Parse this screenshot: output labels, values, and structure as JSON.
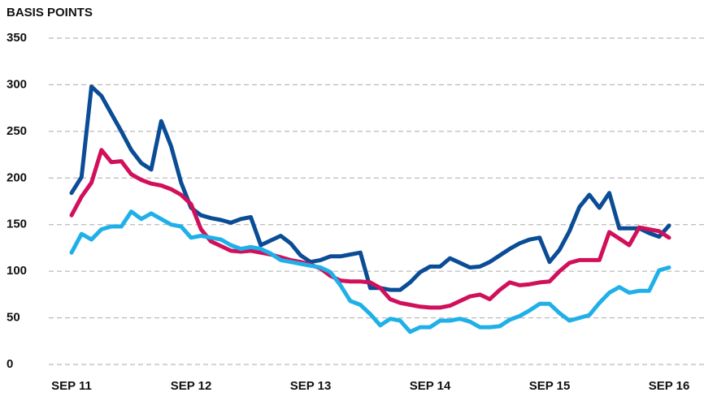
{
  "chart_data": {
    "type": "line",
    "y_label": "BASIS POINTS",
    "categories": [
      "SEP 11",
      null,
      null,
      null,
      null,
      null,
      null,
      null,
      null,
      null,
      null,
      null,
      "SEP 12",
      null,
      null,
      null,
      null,
      null,
      null,
      null,
      null,
      null,
      null,
      null,
      "SEP 13",
      null,
      null,
      null,
      null,
      null,
      null,
      null,
      null,
      null,
      null,
      null,
      "SEP 14",
      null,
      null,
      null,
      null,
      null,
      null,
      null,
      null,
      null,
      null,
      null,
      "SEP 15",
      null,
      null,
      null,
      null,
      null,
      null,
      null,
      null,
      null,
      null,
      null,
      "SEP 16"
    ],
    "series": [
      {
        "color": "#0a4c95",
        "values": [
          184,
          201,
          298,
          288,
          269,
          250,
          230,
          216,
          209,
          261,
          234,
          195,
          168,
          160,
          157,
          155,
          152,
          156,
          158,
          128,
          133,
          138,
          130,
          117,
          110,
          112,
          116,
          116,
          118,
          120,
          82,
          82,
          80,
          80,
          88,
          99,
          105,
          105,
          114,
          109,
          104,
          105,
          110,
          117,
          124,
          130,
          134,
          136,
          110,
          123,
          143,
          169,
          182,
          168,
          184,
          146,
          146,
          146,
          141,
          137,
          149
        ]
      },
      {
        "color": "#d0105a",
        "values": [
          160,
          180,
          195,
          230,
          217,
          218,
          204,
          198,
          194,
          192,
          188,
          182,
          172,
          145,
          132,
          127,
          122,
          121,
          122,
          120,
          118,
          115,
          112,
          110,
          107,
          103,
          95,
          90,
          89,
          89,
          88,
          82,
          70,
          66,
          64,
          62,
          61,
          61,
          63,
          68,
          73,
          75,
          70,
          80,
          88,
          85,
          86,
          88,
          89,
          100,
          109,
          112,
          112,
          112,
          142,
          135,
          128,
          147,
          145,
          143,
          136
        ]
      },
      {
        "color": "#1fb0e8",
        "values": [
          120,
          140,
          134,
          145,
          148,
          148,
          164,
          156,
          162,
          156,
          150,
          148,
          136,
          138,
          136,
          134,
          128,
          124,
          126,
          124,
          119,
          112,
          110,
          108,
          106,
          104,
          99,
          85,
          68,
          64,
          54,
          42,
          49,
          47,
          35,
          40,
          40,
          47,
          47,
          49,
          46,
          40,
          40,
          41,
          48,
          52,
          58,
          65,
          65,
          55,
          47,
          50,
          53,
          66,
          77,
          83,
          77,
          79,
          79,
          101,
          104
        ]
      }
    ],
    "ylim": [
      0,
      350
    ],
    "yticks": [
      0,
      50,
      100,
      150,
      200,
      250,
      300,
      350
    ],
    "grid": true
  }
}
